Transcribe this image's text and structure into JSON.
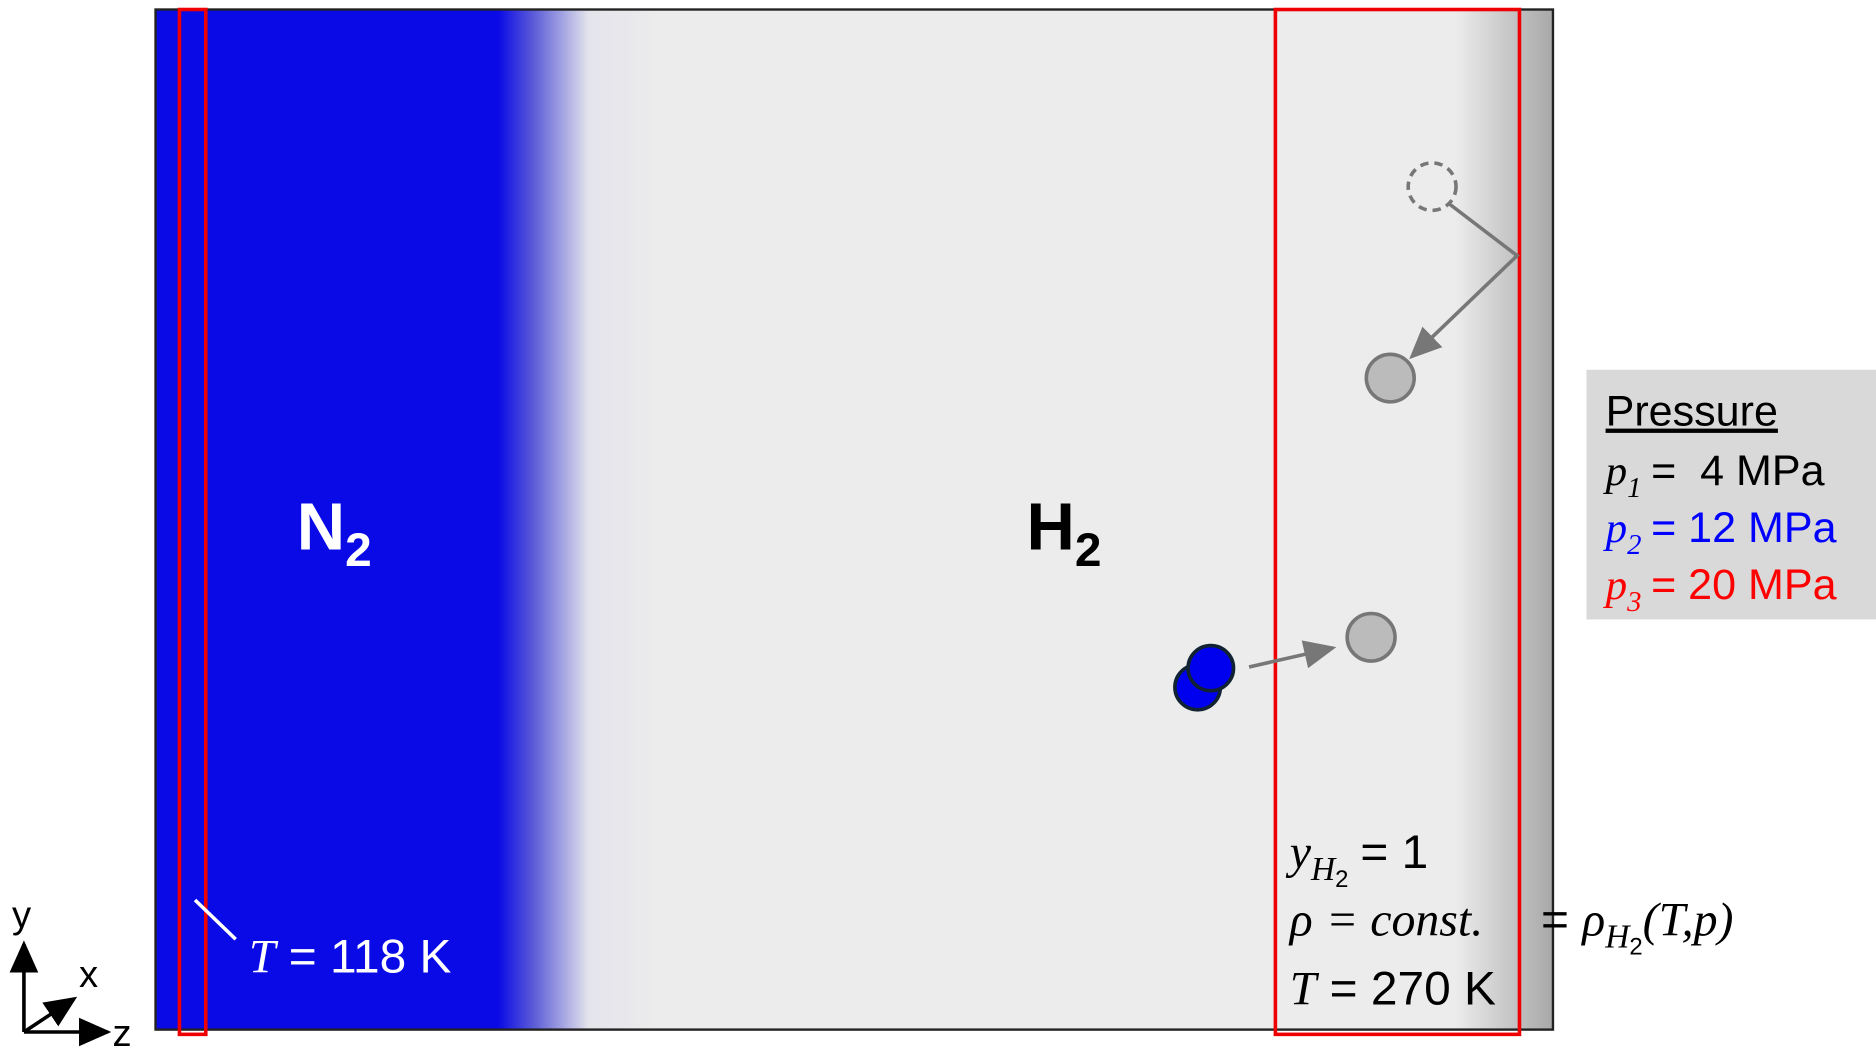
{
  "regions": {
    "n2": {
      "symbol": "N",
      "subscript": "2"
    },
    "h2": {
      "symbol": "H",
      "subscript": "2"
    }
  },
  "wall_temperature": {
    "symbol": "T",
    "text": "= 118 K"
  },
  "reservoir": {
    "mole_fraction": {
      "symbol": "y",
      "subscript": "H",
      "subsubscript": "2",
      "text": "= 1"
    },
    "density": {
      "symbol": "ρ",
      "text": "= const.",
      "equals": "=",
      "rhs_symbol": "ρ",
      "rhs_subscript": "H",
      "rhs_subsubscript": "2",
      "rhs_args": "(T,p)"
    },
    "temperature": {
      "symbol": "T",
      "text": "= 270 K"
    }
  },
  "pressure_legend": {
    "title": "Pressure",
    "items": [
      {
        "symbol": "p",
        "subscript": "1",
        "text": "=  4 MPa",
        "color": "#000000"
      },
      {
        "symbol": "p",
        "subscript": "2",
        "text": "= 12 MPa",
        "color": "#0000ff"
      },
      {
        "symbol": "p",
        "subscript": "3",
        "text": "= 20 MPa",
        "color": "#ff0000"
      }
    ]
  },
  "axes": {
    "y": "y",
    "x": "x",
    "z": "z"
  }
}
